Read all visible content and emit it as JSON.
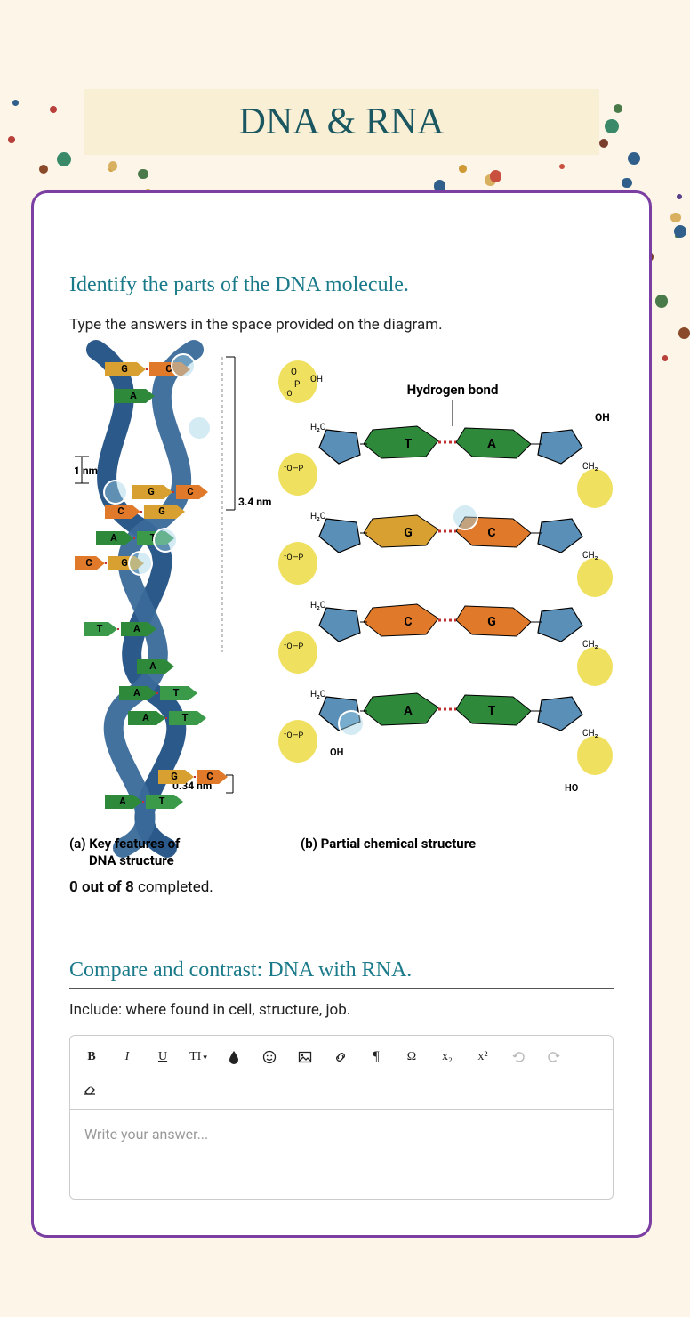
{
  "page": {
    "background_color": "#fdf6e8",
    "card_border_color": "#7b3fa3",
    "title": "DNA & RNA",
    "title_color": "#1a5760",
    "title_banner_bg": "#f9efd5"
  },
  "confetti": {
    "colors": [
      "#c94f3f",
      "#7a3f2c",
      "#cf9a36",
      "#3a8a6a",
      "#2f5f8a",
      "#5a3f8a",
      "#b83f3a",
      "#d8b060",
      "#4a7a4a",
      "#8a4a2a"
    ],
    "count": 110
  },
  "question1": {
    "title": "Identify the parts of the DNA molecule.",
    "subtitle": "Type the answers in the space provided on the diagram.",
    "caption_a_prefix": "(a) ",
    "caption_a_line1": "Key features of",
    "caption_a_line2": "DNA structure",
    "caption_b": "(b) Partial chemical structure",
    "progress_bold": "0 out of 8",
    "progress_rest": " completed.",
    "diagram_a": {
      "scale_label_1nm": "1 nm",
      "scale_label_34nm": "3.4 nm",
      "scale_label_034nm": "0.34 nm",
      "bases": [
        "G",
        "C",
        "A",
        "G",
        "C",
        "C",
        "G",
        "A",
        "T",
        "C",
        "G",
        "T",
        "A",
        "A",
        "A",
        "T",
        "A",
        "T",
        "G",
        "C",
        "A",
        "T"
      ],
      "strand_color": "#2b5a8a",
      "base_colors": {
        "A": "#2e8a3a",
        "T": "#e07a2a",
        "G": "#d8a030",
        "C": "#c97a1a"
      },
      "hotspots": 5
    },
    "diagram_b": {
      "label_hbond": "Hydrogen bond",
      "labels_side": [
        "OH",
        "CH₂",
        "CH₂",
        "CH₂",
        "CH₂",
        "HO"
      ],
      "labels_left": [
        "OH",
        "H₂C",
        "H₂C",
        "H₂C",
        "H₂C",
        "OH"
      ],
      "phosphate_labels": [
        "O",
        "P",
        "O⁻",
        "O⁻"
      ],
      "pairs": [
        {
          "left": "T",
          "right": "A",
          "left_color": "#2e8a3a",
          "right_color": "#2e8a3a"
        },
        {
          "left": "G",
          "right": "C",
          "left_color": "#d8a030",
          "right_color": "#e07a2a"
        },
        {
          "left": "C",
          "right": "G",
          "left_color": "#e07a2a",
          "right_color": "#e07a2a"
        },
        {
          "left": "A",
          "right": "T",
          "left_color": "#2e8a3a",
          "right_color": "#2e8a3a"
        }
      ],
      "sugar_color": "#5a8fb8",
      "phosphate_bg": "#f0e060",
      "hbond_color": "#c03030",
      "hotspots": 2
    }
  },
  "question2": {
    "title": "Compare and contrast: DNA with RNA.",
    "subtitle": "Include: where found in cell, structure, job.",
    "placeholder": "Write your answer...",
    "toolbar": {
      "bold": "B",
      "italic": "I",
      "underline": "U",
      "fontsize": "TI",
      "subscript": "x₂",
      "superscript": "x²",
      "omega": "Ω"
    }
  }
}
